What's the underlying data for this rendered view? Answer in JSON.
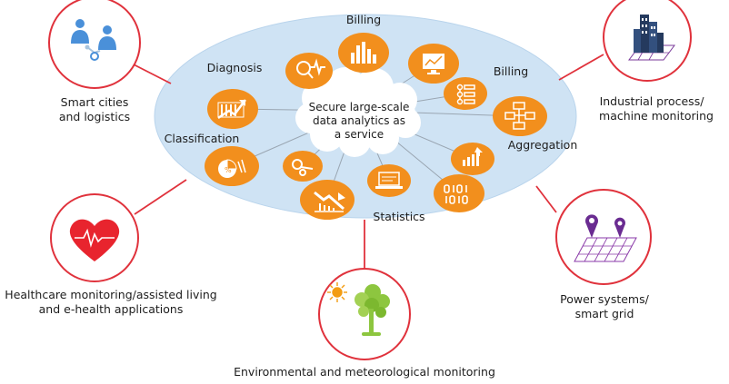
{
  "center": {
    "text_lines": [
      "Secure large-scale",
      "data analytics as",
      "a service"
    ]
  },
  "inner_labels": {
    "billing_top": "Billing",
    "diagnosis": "Diagnosis",
    "billing_right": "Billing",
    "classification": "Classification",
    "aggregation": "Aggregation",
    "statistics": "Statistics"
  },
  "applications": {
    "smart_cities": [
      "Smart cities",
      "and logistics"
    ],
    "industrial": [
      "Industrial process/",
      "machine monitoring"
    ],
    "healthcare": [
      "Healthcare monitoring/assisted living",
      "and e-health applications"
    ],
    "power": [
      "Power systems/",
      "smart grid"
    ],
    "environment": "Environmental and meteorological monitoring"
  },
  "colors": {
    "ellipse_fill": "#cfe3f4",
    "ellipse_edge": "#b7d3ec",
    "node_orange": "#f28f1d",
    "ring_red": "#e0323c",
    "spoke_gray": "#9aa6b2",
    "icon_blue": "#4a90d9",
    "icon_navy": "#253a5e",
    "icon_purple": "#6a2c91",
    "heart_red": "#e8242e",
    "tree_green": "#8dc63f",
    "sun_orange": "#f39c12"
  },
  "icons": {
    "smart_cities": "people-network-icon",
    "industrial": "office-building-icon",
    "healthcare": "heart-pulse-icon",
    "power": "map-pins-grid-icon",
    "environment": "sun-and-tree-icon"
  }
}
